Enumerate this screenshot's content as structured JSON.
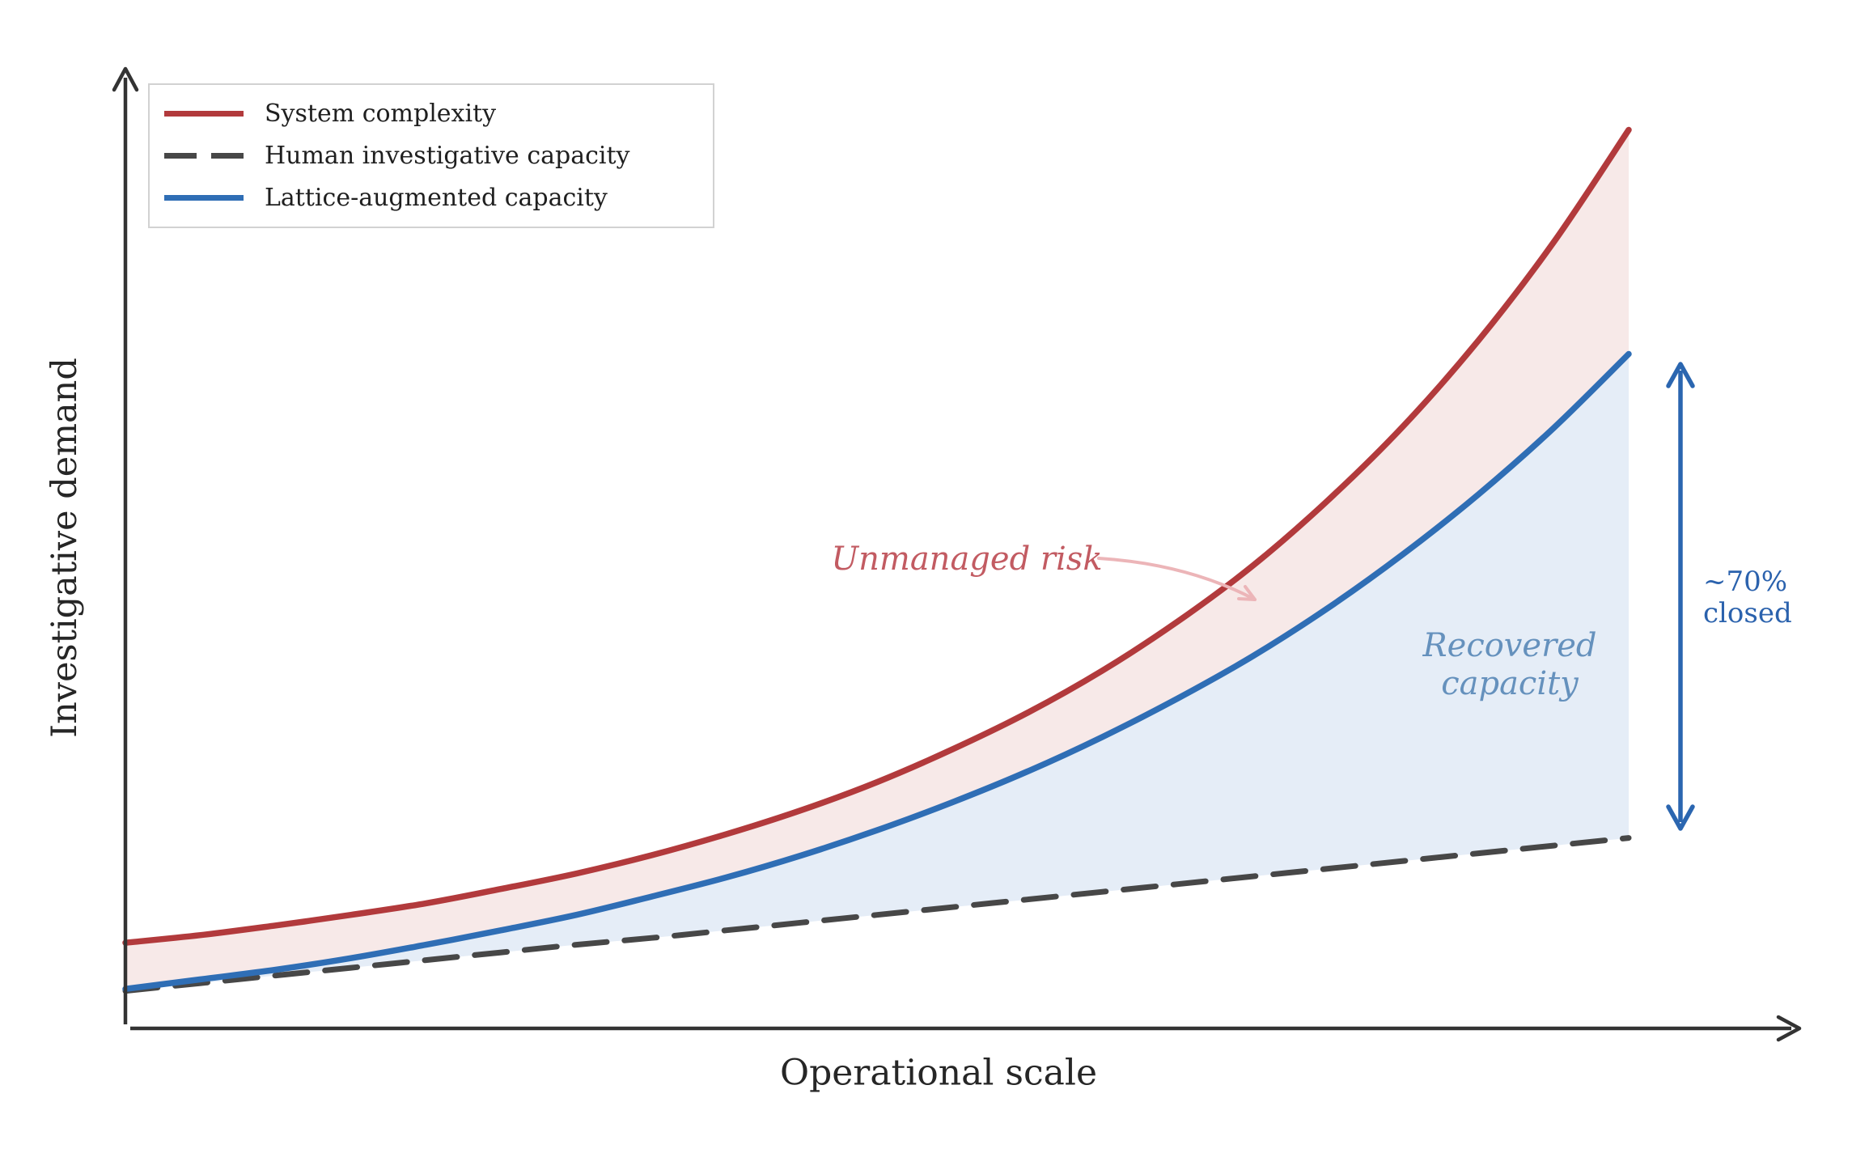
{
  "figure": {
    "xlabel": "Operational scale",
    "ylabel": "Investigative demand",
    "background": "#ffffff",
    "axis_color": "#333333"
  },
  "legend": {
    "items": [
      {
        "label": "System complexity",
        "color": "#b23a3c",
        "style": "solid"
      },
      {
        "label": "Human investigative capacity",
        "color": "#474747",
        "style": "dashed"
      },
      {
        "label": "Lattice-augmented capacity",
        "color": "#2f6eb5",
        "style": "solid"
      }
    ]
  },
  "annotations": {
    "unmanaged_risk": {
      "text": "Unmanaged risk",
      "color": "#c25b62",
      "arrow_color": "#ecb5b8"
    },
    "recovered_capacity": {
      "lines": [
        "Recovered",
        "capacity"
      ],
      "color": "#6591bd"
    },
    "closed_gap": {
      "lines": [
        "~70%",
        "closed"
      ],
      "color": "#2b62ad",
      "arrow_color": "#2b66b0"
    }
  },
  "chart_data": {
    "type": "line",
    "title": "",
    "xlabel": "Operational scale",
    "ylabel": "Investigative demand",
    "xlim": [
      0,
      10
    ],
    "ylim": [
      0,
      10
    ],
    "grid": false,
    "ticks": "none",
    "legend_position": "upper-left",
    "x": [
      0,
      0.5,
      1,
      1.5,
      2,
      2.5,
      3,
      3.5,
      4,
      4.5,
      5,
      5.5,
      6,
      6.5,
      7,
      7.5,
      8,
      8.5,
      9,
      9.5,
      10
    ],
    "series": [
      {
        "name": "System complexity",
        "color": "#b23a3c",
        "style": "solid",
        "width": 7.5,
        "values": [
          0.89,
          0.97,
          1.07,
          1.18,
          1.3,
          1.45,
          1.61,
          1.8,
          2.02,
          2.27,
          2.56,
          2.9,
          3.28,
          3.72,
          4.23,
          4.81,
          5.49,
          6.26,
          7.15,
          8.17,
          9.34
        ]
      },
      {
        "name": "Lattice-augmented capacity",
        "color": "#2f6eb5",
        "style": "solid",
        "width": 7.5,
        "values": [
          0.41,
          0.51,
          0.61,
          0.73,
          0.87,
          1.02,
          1.18,
          1.37,
          1.57,
          1.8,
          2.06,
          2.35,
          2.67,
          3.03,
          3.43,
          3.87,
          4.37,
          4.93,
          5.55,
          6.24,
          7.01
        ]
      },
      {
        "name": "Human investigative capacity",
        "color": "#474747",
        "style": "dashed",
        "width": 7,
        "values": [
          0.39,
          0.47,
          0.55,
          0.63,
          0.71,
          0.79,
          0.87,
          0.94,
          1.02,
          1.1,
          1.18,
          1.26,
          1.34,
          1.42,
          1.5,
          1.58,
          1.66,
          1.74,
          1.82,
          1.9,
          1.98
        ]
      }
    ],
    "fills": [
      {
        "between": [
          "System complexity",
          "Lattice-augmented capacity"
        ],
        "color": "#f7e9e8",
        "label": "Unmanaged risk"
      },
      {
        "between": [
          "Lattice-augmented capacity",
          "Human investigative capacity"
        ],
        "color": "#e5edf7",
        "label": "Recovered capacity"
      }
    ],
    "gap_marker": {
      "label": "~70% closed",
      "x": 10,
      "from_series": "Human investigative capacity",
      "to_series": "Lattice-augmented capacity"
    }
  }
}
